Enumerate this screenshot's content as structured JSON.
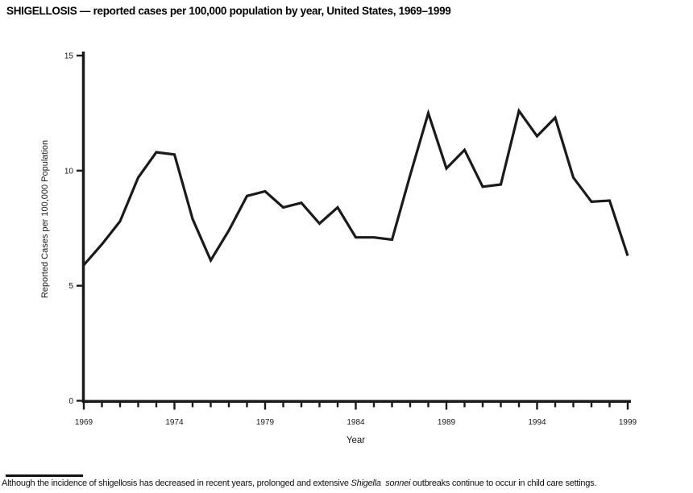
{
  "chart_data": {
    "type": "line",
    "title": "SHIGELLOSIS — reported cases per 100,000 population by year, United States, 1969–1999",
    "xlabel": "Year",
    "ylabel": "Reported Cases per 100,000 Population",
    "x": [
      1969,
      1970,
      1971,
      1972,
      1973,
      1974,
      1975,
      1976,
      1977,
      1978,
      1979,
      1980,
      1981,
      1982,
      1983,
      1984,
      1985,
      1986,
      1987,
      1988,
      1989,
      1990,
      1991,
      1992,
      1993,
      1994,
      1995,
      1996,
      1997,
      1998,
      1999
    ],
    "values": [
      5.9,
      6.8,
      7.8,
      9.7,
      10.8,
      10.7,
      7.9,
      6.1,
      7.4,
      8.9,
      9.1,
      8.4,
      8.6,
      7.7,
      8.4,
      7.1,
      7.1,
      7.0,
      9.8,
      12.5,
      10.1,
      10.9,
      9.3,
      9.4,
      12.6,
      11.5,
      12.3,
      9.7,
      8.65,
      8.7,
      6.3
    ],
    "xlim": [
      1969,
      1999
    ],
    "ylim": [
      0,
      15
    ],
    "yticks": [
      0,
      5,
      10,
      15
    ],
    "xtick_labels": [
      1969,
      1974,
      1979,
      1984,
      1989,
      1994,
      1999
    ],
    "grid": "off",
    "legend": "none",
    "line_color": "#1a1a1a",
    "axis_color": "#1a1a1a"
  },
  "footnote": {
    "prefix": "Although the incidence of shigellosis has decreased in recent years, prolonged and extensive ",
    "italic": "Shigella  sonnei",
    "suffix": " outbreaks continue to occur in child care settings."
  }
}
